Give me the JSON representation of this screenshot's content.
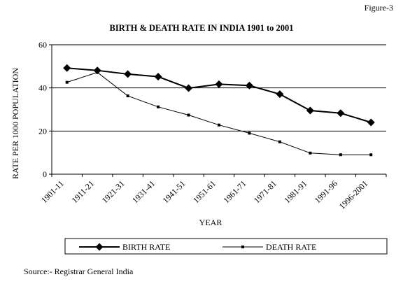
{
  "figure_label": "Figure-3",
  "source": "Source:- Registrar General India",
  "chart_data": {
    "type": "line",
    "title": "BIRTH & DEATH RATE IN INDIA 1901 to 2001",
    "xlabel": "YEAR",
    "ylabel": "RATE PER 1000 POPULATION",
    "ylim": [
      0,
      60
    ],
    "yticks": [
      0,
      20,
      40,
      60
    ],
    "grid": true,
    "legend": "bottom",
    "categories": [
      "1901-11",
      "1911-21",
      "1921-31",
      "1931-41",
      "1941-51",
      "1951-61",
      "1961-71",
      "1971-81",
      "1981-91",
      "1991-96",
      "1996-2001"
    ],
    "series": [
      {
        "name": "BIRTH RATE",
        "marker": "diamond",
        "color": "#000000",
        "values": [
          49.2,
          48.1,
          46.4,
          45.2,
          39.9,
          41.7,
          41.1,
          37.1,
          29.5,
          28.3,
          24.0
        ]
      },
      {
        "name": "DEATH RATE",
        "marker": "square",
        "color": "#000000",
        "values": [
          42.6,
          47.2,
          36.3,
          31.2,
          27.4,
          22.8,
          19.0,
          15.0,
          9.8,
          9.0,
          9.0
        ]
      }
    ]
  }
}
